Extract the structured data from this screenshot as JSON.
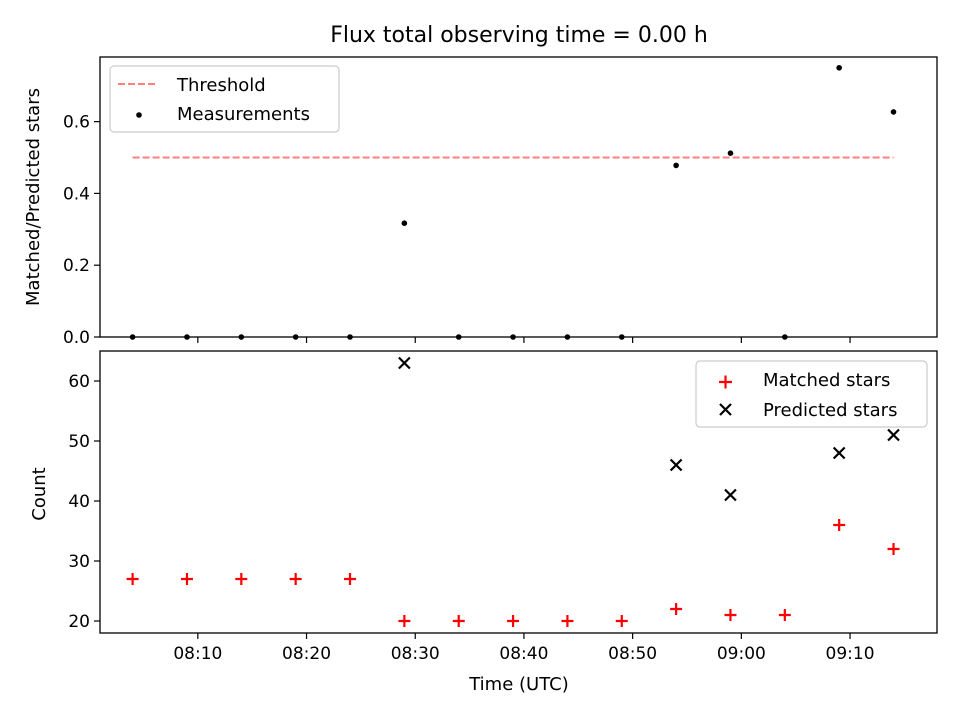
{
  "figure": {
    "title": "Flux total observing time = 0.00 h"
  },
  "chart_data": [
    {
      "type": "scatter",
      "xlabel": "",
      "ylabel": "Matched/Predicted stars",
      "ylim": [
        0.0,
        0.78
      ],
      "yticks": [
        0.0,
        0.2,
        0.4,
        0.6
      ],
      "ytick_labels": [
        "0.0",
        "0.2",
        "0.4",
        "0.6"
      ],
      "xlim": [
        "08:01",
        "09:18"
      ],
      "xticks": [
        "08:10",
        "08:20",
        "08:30",
        "08:40",
        "08:50",
        "09:00",
        "09:10"
      ],
      "legend_position": "top-left",
      "threshold": {
        "name": "Threshold",
        "value": 0.5,
        "x_start": "08:04",
        "x_end": "09:14",
        "style": "dashed",
        "color": "#ff7f7f"
      },
      "series": [
        {
          "name": "Measurements",
          "marker": "dot",
          "color": "#000000",
          "x": [
            "08:04",
            "08:09",
            "08:14",
            "08:19",
            "08:24",
            "08:29",
            "08:34",
            "08:39",
            "08:44",
            "08:49",
            "08:54",
            "08:59",
            "09:04",
            "09:09",
            "09:14"
          ],
          "y": [
            0.0,
            0.0,
            0.0,
            0.0,
            0.0,
            0.317,
            0.0,
            0.0,
            0.0,
            0.0,
            0.478,
            0.512,
            0.0,
            0.75,
            0.627
          ]
        }
      ],
      "grid": false
    },
    {
      "type": "scatter",
      "xlabel": "Time (UTC)",
      "ylabel": "Count",
      "ylim": [
        18,
        65
      ],
      "yticks": [
        20,
        30,
        40,
        50,
        60
      ],
      "ytick_labels": [
        "20",
        "30",
        "40",
        "50",
        "60"
      ],
      "xlim": [
        "08:01",
        "09:18"
      ],
      "xticks": [
        "08:10",
        "08:20",
        "08:30",
        "08:40",
        "08:50",
        "09:00",
        "09:10"
      ],
      "xtick_labels": [
        "08:10",
        "08:20",
        "08:30",
        "08:40",
        "08:50",
        "09:00",
        "09:10"
      ],
      "legend_position": "top-right",
      "series": [
        {
          "name": "Matched stars",
          "marker": "plus",
          "color": "#ff0000",
          "x": [
            "08:04",
            "08:09",
            "08:14",
            "08:19",
            "08:24",
            "08:29",
            "08:34",
            "08:39",
            "08:44",
            "08:49",
            "08:54",
            "08:59",
            "09:04",
            "09:09",
            "09:14"
          ],
          "y": [
            27,
            27,
            27,
            27,
            27,
            20,
            20,
            20,
            20,
            20,
            22,
            21,
            21,
            36,
            32
          ]
        },
        {
          "name": "Predicted stars",
          "marker": "x",
          "color": "#000000",
          "x": [
            "08:29",
            "08:54",
            "08:59",
            "09:09",
            "09:14"
          ],
          "y": [
            63,
            46,
            41,
            48,
            51
          ]
        }
      ],
      "grid": false
    }
  ]
}
